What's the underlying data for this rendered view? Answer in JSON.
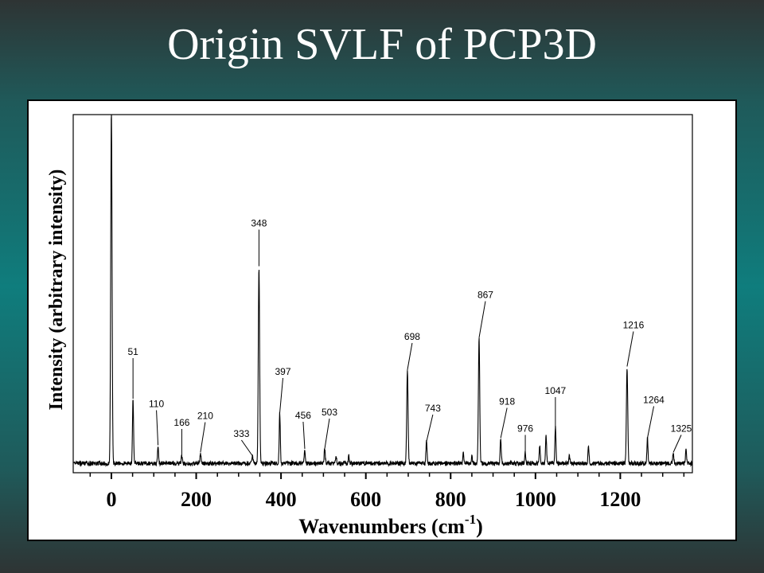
{
  "slide": {
    "title": "Origin SVLF of PCP3D"
  },
  "chart_data": {
    "type": "line",
    "title": "",
    "xlabel": "Wavenumbers (cm",
    "xlabel_sup": "-1",
    "xlabel_tail": ")",
    "ylabel": "Intensity (arbitrary intensity)",
    "xlim": [
      -90,
      1370
    ],
    "ylim": [
      0,
      1.0
    ],
    "xticks": [
      0,
      200,
      400,
      600,
      800,
      1000,
      1200
    ],
    "grid": false,
    "baseline": 0.02,
    "peaks": [
      {
        "x": 0,
        "y": 1.0
      },
      {
        "x": 51,
        "y": 0.18
      },
      {
        "x": 110,
        "y": 0.05
      },
      {
        "x": 166,
        "y": 0.02
      },
      {
        "x": 210,
        "y": 0.03
      },
      {
        "x": 333,
        "y": 0.02
      },
      {
        "x": 348,
        "y": 0.55
      },
      {
        "x": 397,
        "y": 0.14
      },
      {
        "x": 456,
        "y": 0.04
      },
      {
        "x": 503,
        "y": 0.04
      },
      {
        "x": 530,
        "y": 0.02
      },
      {
        "x": 560,
        "y": 0.02
      },
      {
        "x": 698,
        "y": 0.26
      },
      {
        "x": 743,
        "y": 0.06
      },
      {
        "x": 830,
        "y": 0.03
      },
      {
        "x": 850,
        "y": 0.02
      },
      {
        "x": 867,
        "y": 0.35
      },
      {
        "x": 918,
        "y": 0.07
      },
      {
        "x": 976,
        "y": 0.03
      },
      {
        "x": 1010,
        "y": 0.05
      },
      {
        "x": 1025,
        "y": 0.08
      },
      {
        "x": 1047,
        "y": 0.1
      },
      {
        "x": 1080,
        "y": 0.02
      },
      {
        "x": 1125,
        "y": 0.05
      },
      {
        "x": 1216,
        "y": 0.27
      },
      {
        "x": 1264,
        "y": 0.07
      },
      {
        "x": 1325,
        "y": 0.03
      },
      {
        "x": 1355,
        "y": 0.04
      }
    ],
    "labels": [
      {
        "x": 51,
        "text": "51"
      },
      {
        "x": 110,
        "text": "110"
      },
      {
        "x": 166,
        "text": "166"
      },
      {
        "x": 210,
        "text": "210"
      },
      {
        "x": 333,
        "text": "333"
      },
      {
        "x": 348,
        "text": "348"
      },
      {
        "x": 397,
        "text": "397"
      },
      {
        "x": 456,
        "text": "456"
      },
      {
        "x": 503,
        "text": "503"
      },
      {
        "x": 698,
        "text": "698"
      },
      {
        "x": 743,
        "text": "743"
      },
      {
        "x": 867,
        "text": "867"
      },
      {
        "x": 918,
        "text": "918"
      },
      {
        "x": 976,
        "text": "976"
      },
      {
        "x": 1047,
        "text": "1047"
      },
      {
        "x": 1216,
        "text": "1216"
      },
      {
        "x": 1264,
        "text": "1264"
      },
      {
        "x": 1325,
        "text": "1325"
      }
    ]
  }
}
